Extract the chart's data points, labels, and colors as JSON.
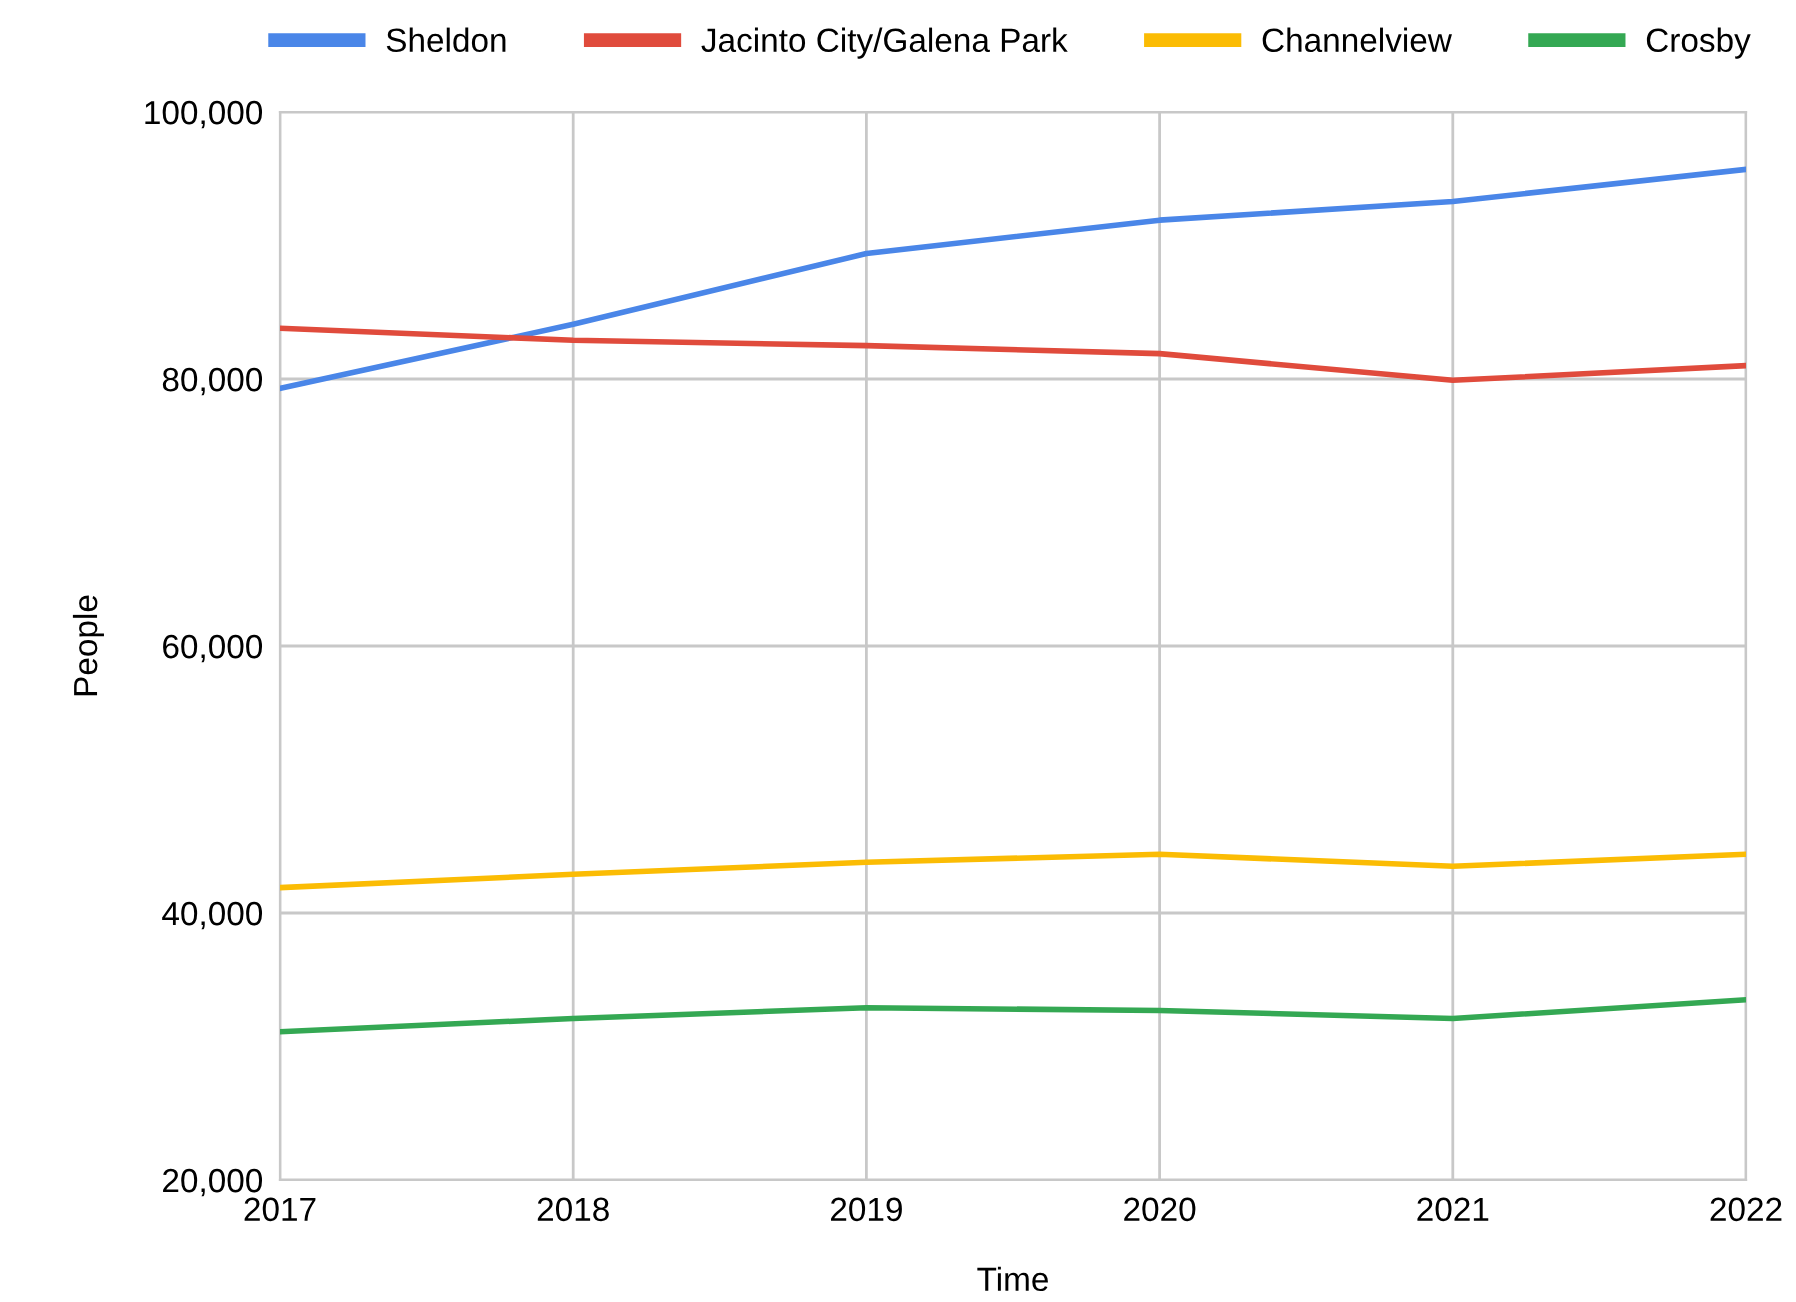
{
  "chart_data": {
    "type": "line",
    "xlabel": "Time",
    "ylabel": "People",
    "x": [
      2017,
      2018,
      2019,
      2020,
      2021,
      2022
    ],
    "series": [
      {
        "name": "Sheldon",
        "color": "#4a86e8",
        "values": [
          79300,
          84100,
          89400,
          91900,
          93300,
          95700
        ]
      },
      {
        "name": "Jacinto City/Galena Park",
        "color": "#e04b3c",
        "values": [
          83800,
          82900,
          82500,
          81900,
          79900,
          81000
        ]
      },
      {
        "name": "Channelview",
        "color": "#fbbc04",
        "values": [
          41900,
          42900,
          43800,
          44400,
          43500,
          44400
        ]
      },
      {
        "name": "Crosby",
        "color": "#34a853",
        "values": [
          31100,
          32100,
          32900,
          32700,
          32100,
          33500
        ]
      }
    ],
    "xlim": [
      2017,
      2022
    ],
    "xticks": [
      2017,
      2018,
      2019,
      2020,
      2021,
      2022
    ],
    "ylim": [
      20000,
      100000
    ],
    "yticks": [
      {
        "value": 20000,
        "label": "20,000"
      },
      {
        "value": 40000,
        "label": "40,000"
      },
      {
        "value": 60000,
        "label": "60,000"
      },
      {
        "value": 80000,
        "label": "80,000"
      },
      {
        "value": 100000,
        "label": "100,000"
      }
    ],
    "grid": true,
    "legend": "top",
    "marker": "none",
    "line_style": "solid"
  }
}
